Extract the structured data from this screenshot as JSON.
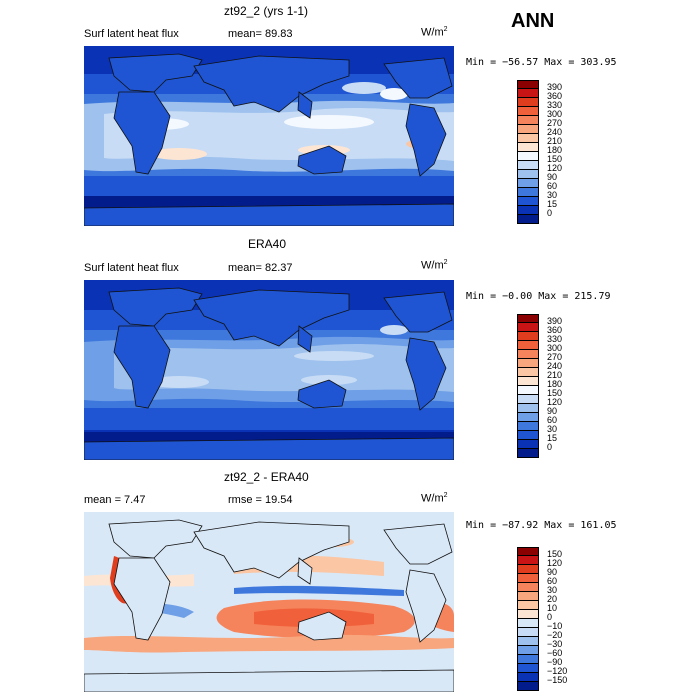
{
  "season": "ANN",
  "panels": [
    {
      "title": "zt92_2 (yrs 1-1)",
      "variable": "Surf latent heat flux",
      "stat1": "mean=   89.83",
      "stat2": "",
      "units_base": "W/m",
      "units_exp": "2",
      "minmax": "Min = −56.57  Max = 303.95",
      "scale": "abs",
      "colorbar_labels": [
        "390",
        "360",
        "330",
        "300",
        "270",
        "240",
        "210",
        "180",
        "150",
        "120",
        "90",
        "60",
        "30",
        "15",
        "0"
      ]
    },
    {
      "title": "ERA40",
      "variable": "Surf latent heat flux",
      "stat1": "mean=   82.37",
      "stat2": "",
      "units_base": "W/m",
      "units_exp": "2",
      "minmax": "Min =  −0.00  Max = 215.79",
      "scale": "abs",
      "colorbar_labels": [
        "390",
        "360",
        "330",
        "300",
        "270",
        "240",
        "210",
        "180",
        "150",
        "120",
        "90",
        "60",
        "30",
        "15",
        "0"
      ]
    },
    {
      "title": "zt92_2 - ERA40",
      "variable": "",
      "stat1": "mean =    7.47",
      "stat2": "rmse =   19.54",
      "units_base": "W/m",
      "units_exp": "2",
      "minmax": "Min = −87.92  Max = 161.05",
      "scale": "diff",
      "colorbar_labels": [
        "150",
        "120",
        "90",
        "60",
        "30",
        "20",
        "10",
        "0",
        "−10",
        "−20",
        "−30",
        "−60",
        "−90",
        "−120",
        "−150"
      ]
    }
  ],
  "colors": {
    "abs": [
      "#8b0000",
      "#c81414",
      "#e03c1e",
      "#f0603a",
      "#f5845c",
      "#f8a67e",
      "#fbc6a3",
      "#fde5d3",
      "#f4f9ff",
      "#c8dcf5",
      "#9ec1ee",
      "#6f9fe6",
      "#3f78dd",
      "#1f55d2",
      "#0a32b4",
      "#021c8c"
    ],
    "diff": [
      "#8b0000",
      "#c81414",
      "#e03c1e",
      "#f0603a",
      "#f5845c",
      "#f8a67e",
      "#fbc6a3",
      "#fde5d3",
      "#d9e8f7",
      "#c8dcf5",
      "#9ec1ee",
      "#6f9fe6",
      "#3f78dd",
      "#1f55d2",
      "#0a32b4",
      "#021c8c"
    ]
  }
}
